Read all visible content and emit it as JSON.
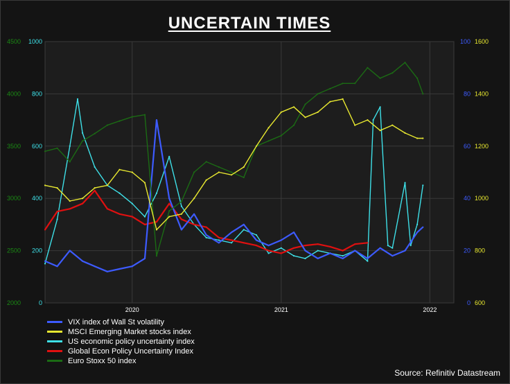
{
  "title": "UNCERTAIN TIMES",
  "source": "Source: Refinitiv Datastream",
  "colors": {
    "vix": "#3d5bff",
    "msci": "#e8e830",
    "us_epu": "#3ee0e8",
    "global_epu": "#e01010",
    "stoxx": "#1b6b14"
  },
  "chart_data": {
    "type": "line",
    "title": "UNCERTAIN TIMES",
    "x_ticks": [
      "2020",
      "2021",
      "2022"
    ],
    "xlim": [
      "2019-06-01",
      "2022-03-01"
    ],
    "grid": true,
    "legend_position": "bottom-left",
    "axes": {
      "stoxx_axis": {
        "ticks": [
          "2000",
          "2500",
          "3000",
          "3500",
          "4000",
          "4500"
        ],
        "range": [
          2000,
          4500
        ],
        "color": "#1b8a14"
      },
      "epu_axis": {
        "ticks": [
          "0",
          "200",
          "400",
          "600",
          "800",
          "1000"
        ],
        "range": [
          0,
          1000
        ],
        "color": "#3ee0e8"
      },
      "vix_axis": {
        "ticks": [
          "0",
          "20",
          "40",
          "60",
          "80",
          "100"
        ],
        "range": [
          0,
          100
        ],
        "color": "#3d5bff"
      },
      "msci_axis": {
        "ticks": [
          "600",
          "800",
          "1000",
          "1200",
          "1400",
          "1600"
        ],
        "range": [
          600,
          1600
        ],
        "color": "#e8e830"
      }
    },
    "series": [
      {
        "name": "US economic policy uncertainty index",
        "key": "us_epu",
        "axis": "epu_axis",
        "x": [
          "2019-06-01",
          "2019-07-01",
          "2019-08-01",
          "2019-08-20",
          "2019-09-01",
          "2019-10-01",
          "2019-11-01",
          "2019-12-01",
          "2020-01-01",
          "2020-02-01",
          "2020-03-01",
          "2020-04-01",
          "2020-05-01",
          "2020-06-01",
          "2020-07-01",
          "2020-08-01",
          "2020-09-01",
          "2020-10-01",
          "2020-11-01",
          "2020-12-01",
          "2021-01-01",
          "2021-02-01",
          "2021-03-01",
          "2021-04-01",
          "2021-05-01",
          "2021-06-01",
          "2021-07-01",
          "2021-08-01",
          "2021-08-15",
          "2021-09-01",
          "2021-09-20",
          "2021-10-01",
          "2021-11-01",
          "2021-11-15",
          "2021-12-01",
          "2021-12-15"
        ],
        "values": [
          150,
          320,
          600,
          780,
          650,
          520,
          450,
          420,
          380,
          330,
          420,
          560,
          370,
          300,
          250,
          240,
          230,
          280,
          260,
          190,
          210,
          180,
          170,
          200,
          190,
          180,
          200,
          160,
          700,
          750,
          220,
          210,
          460,
          220,
          300,
          450
        ]
      },
      {
        "name": "Global Econ Policy Uncertainty Index",
        "key": "global_epu",
        "axis": "epu_axis",
        "x": [
          "2019-06-01",
          "2019-07-01",
          "2019-08-01",
          "2019-09-01",
          "2019-10-01",
          "2019-11-01",
          "2019-12-01",
          "2020-01-01",
          "2020-02-01",
          "2020-03-01",
          "2020-04-01",
          "2020-05-01",
          "2020-06-01",
          "2020-07-01",
          "2020-08-01",
          "2020-09-01",
          "2020-10-01",
          "2020-11-01",
          "2020-12-01",
          "2021-01-01",
          "2021-02-01",
          "2021-03-01",
          "2021-04-01",
          "2021-05-01",
          "2021-06-01",
          "2021-07-01",
          "2021-08-01"
        ],
        "values": [
          280,
          350,
          360,
          380,
          430,
          360,
          340,
          330,
          300,
          310,
          380,
          320,
          300,
          290,
          250,
          240,
          230,
          220,
          200,
          190,
          210,
          220,
          225,
          215,
          200,
          225,
          230
        ]
      },
      {
        "name": "VIX index of Wall St volatility",
        "key": "vix",
        "axis": "vix_axis",
        "x": [
          "2019-06-01",
          "2019-07-01",
          "2019-08-01",
          "2019-09-01",
          "2019-10-01",
          "2019-11-01",
          "2019-12-01",
          "2020-01-01",
          "2020-02-01",
          "2020-03-01",
          "2020-04-01",
          "2020-05-01",
          "2020-06-01",
          "2020-07-01",
          "2020-08-01",
          "2020-09-01",
          "2020-10-01",
          "2020-11-01",
          "2020-12-01",
          "2021-01-01",
          "2021-02-01",
          "2021-03-01",
          "2021-04-01",
          "2021-05-01",
          "2021-06-01",
          "2021-07-01",
          "2021-08-01",
          "2021-09-01",
          "2021-10-01",
          "2021-11-01",
          "2021-12-01",
          "2021-12-15"
        ],
        "values": [
          16,
          14,
          20,
          16,
          14,
          12,
          13,
          14,
          17,
          70,
          40,
          28,
          34,
          26,
          23,
          27,
          30,
          24,
          22,
          24,
          27,
          20,
          17,
          19,
          17,
          20,
          17,
          21,
          18,
          20,
          27,
          29
        ]
      },
      {
        "name": "Euro Stoxx 50 index",
        "key": "stoxx",
        "axis": "stoxx_axis",
        "x": [
          "2019-06-01",
          "2019-07-01",
          "2019-08-01",
          "2019-09-01",
          "2019-10-01",
          "2019-11-01",
          "2019-12-01",
          "2020-01-01",
          "2020-02-01",
          "2020-03-01",
          "2020-04-01",
          "2020-05-01",
          "2020-06-01",
          "2020-07-01",
          "2020-08-01",
          "2020-09-01",
          "2020-10-01",
          "2020-11-01",
          "2020-12-01",
          "2021-01-01",
          "2021-02-01",
          "2021-03-01",
          "2021-04-01",
          "2021-05-01",
          "2021-06-01",
          "2021-07-01",
          "2021-08-01",
          "2021-09-01",
          "2021-10-01",
          "2021-11-01",
          "2021-12-01",
          "2021-12-15"
        ],
        "values": [
          3450,
          3480,
          3350,
          3550,
          3620,
          3700,
          3740,
          3780,
          3800,
          2450,
          2880,
          2970,
          3250,
          3350,
          3300,
          3250,
          3200,
          3500,
          3550,
          3600,
          3700,
          3900,
          4000,
          4050,
          4100,
          4100,
          4250,
          4150,
          4200,
          4300,
          4150,
          4000
        ]
      },
      {
        "name": "MSCI Emerging Market stocks index",
        "key": "msci",
        "axis": "msci_axis",
        "x": [
          "2019-06-01",
          "2019-07-01",
          "2019-08-01",
          "2019-09-01",
          "2019-10-01",
          "2019-11-01",
          "2019-12-01",
          "2020-01-01",
          "2020-02-01",
          "2020-03-01",
          "2020-04-01",
          "2020-05-01",
          "2020-06-01",
          "2020-07-01",
          "2020-08-01",
          "2020-09-01",
          "2020-10-01",
          "2020-11-01",
          "2020-12-01",
          "2021-01-01",
          "2021-02-01",
          "2021-03-01",
          "2021-04-01",
          "2021-05-01",
          "2021-06-01",
          "2021-07-01",
          "2021-08-01",
          "2021-09-01",
          "2021-10-01",
          "2021-11-01",
          "2021-12-01",
          "2021-12-15"
        ],
        "values": [
          1050,
          1040,
          990,
          1000,
          1040,
          1050,
          1110,
          1100,
          1060,
          880,
          930,
          940,
          1000,
          1070,
          1100,
          1090,
          1120,
          1200,
          1270,
          1330,
          1350,
          1310,
          1330,
          1370,
          1380,
          1280,
          1300,
          1260,
          1280,
          1250,
          1230,
          1230
        ]
      }
    ]
  }
}
